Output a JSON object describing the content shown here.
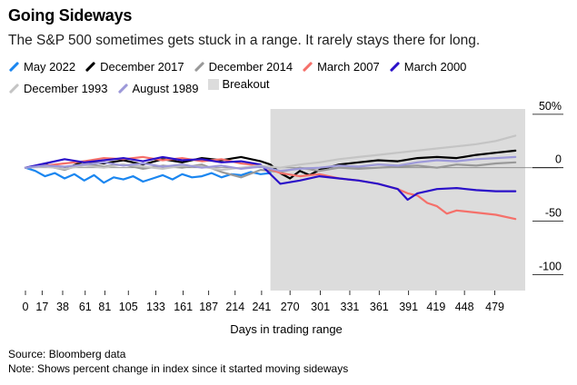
{
  "title": "Going Sideways",
  "subtitle": "The S&P 500 sometimes gets stuck in a range. It rarely stays there for long.",
  "source": "Source: Bloomberg data",
  "note": "Note: Shows percent change in index since it started moving sideways",
  "chart_data": {
    "type": "line",
    "title": "Going Sideways",
    "xlabel": "Days in trading range",
    "ylabel": "",
    "xlim": [
      0,
      510
    ],
    "ylim": [
      -115,
      55
    ],
    "x_ticks": [
      0,
      17,
      38,
      61,
      81,
      105,
      133,
      161,
      187,
      214,
      241,
      270,
      301,
      331,
      361,
      391,
      419,
      448,
      479
    ],
    "y_ticks": [
      {
        "value": 50,
        "label": "50%"
      },
      {
        "value": 0,
        "label": "0"
      },
      {
        "value": -50,
        "label": "-50"
      },
      {
        "value": -100,
        "label": "-100"
      }
    ],
    "breakout": {
      "label": "Breakout",
      "color": "#dcdcdc",
      "x_start": 250,
      "x_end": 510
    },
    "legend_position": "top",
    "grid": false,
    "series": [
      {
        "name": "May 2022",
        "color": "#1a86f0",
        "x": [
          0,
          10,
          20,
          30,
          40,
          50,
          60,
          70,
          80,
          90,
          100,
          110,
          120,
          130,
          140,
          150,
          160,
          170,
          180,
          190,
          200,
          210,
          220,
          230,
          240,
          250
        ],
        "values": [
          0,
          -3,
          -8,
          -5,
          -10,
          -6,
          -12,
          -7,
          -14,
          -9,
          -11,
          -8,
          -13,
          -10,
          -7,
          -11,
          -6,
          -9,
          -8,
          -5,
          -9,
          -6,
          -7,
          -4,
          -6,
          -5
        ]
      },
      {
        "name": "December 2017",
        "color": "#000000",
        "x": [
          0,
          20,
          40,
          60,
          80,
          100,
          120,
          140,
          160,
          180,
          200,
          220,
          240,
          250,
          260,
          270,
          280,
          290,
          300,
          320,
          340,
          360,
          380,
          400,
          420,
          440,
          460,
          480,
          500
        ],
        "values": [
          0,
          3,
          -1,
          6,
          4,
          7,
          3,
          8,
          5,
          9,
          7,
          10,
          6,
          3,
          -5,
          -10,
          -3,
          -7,
          -2,
          3,
          5,
          7,
          6,
          9,
          10,
          9,
          12,
          14,
          16
        ]
      },
      {
        "name": "December 2014",
        "color": "#999999",
        "x": [
          0,
          20,
          40,
          60,
          80,
          100,
          120,
          140,
          160,
          180,
          200,
          220,
          240,
          260,
          280,
          300,
          320,
          340,
          360,
          380,
          400,
          420,
          440,
          460,
          480,
          500
        ],
        "values": [
          0,
          2,
          -2,
          4,
          1,
          3,
          -1,
          2,
          0,
          3,
          -4,
          -9,
          -2,
          -4,
          0,
          -3,
          0,
          -1,
          0,
          1,
          2,
          0,
          3,
          2,
          4,
          5
        ]
      },
      {
        "name": "March 2007",
        "color": "#f5706a",
        "x": [
          0,
          20,
          40,
          60,
          80,
          100,
          120,
          140,
          160,
          180,
          200,
          220,
          240,
          260,
          280,
          300,
          320,
          340,
          360,
          380,
          390,
          400,
          410,
          420,
          430,
          440,
          460,
          480,
          500
        ],
        "values": [
          0,
          2,
          4,
          6,
          9,
          8,
          10,
          7,
          9,
          6,
          8,
          4,
          2,
          -5,
          -8,
          -6,
          -10,
          -12,
          -15,
          -20,
          -24,
          -26,
          -33,
          -36,
          -43,
          -40,
          -42,
          -44,
          -48
        ]
      },
      {
        "name": "March 2000",
        "color": "#2a10c9",
        "x": [
          0,
          20,
          40,
          60,
          80,
          100,
          120,
          140,
          160,
          180,
          200,
          220,
          240,
          260,
          280,
          300,
          320,
          340,
          360,
          380,
          390,
          400,
          410,
          420,
          440,
          460,
          480,
          500
        ],
        "values": [
          0,
          4,
          8,
          5,
          7,
          9,
          6,
          10,
          7,
          8,
          5,
          6,
          3,
          -15,
          -12,
          -8,
          -10,
          -12,
          -15,
          -20,
          -30,
          -24,
          -22,
          -20,
          -19,
          -21,
          -22,
          -22
        ]
      },
      {
        "name": "December 1993",
        "color": "#c4c4c4",
        "x": [
          0,
          20,
          40,
          60,
          80,
          100,
          120,
          140,
          160,
          180,
          200,
          220,
          240,
          260,
          280,
          300,
          320,
          340,
          360,
          380,
          400,
          420,
          440,
          460,
          480,
          500
        ],
        "values": [
          0,
          1,
          -1,
          2,
          0,
          3,
          1,
          -1,
          2,
          1,
          -2,
          0,
          2,
          0,
          3,
          5,
          8,
          10,
          12,
          14,
          16,
          18,
          20,
          22,
          25,
          30
        ]
      },
      {
        "name": "August 1989",
        "color": "#9d99d9",
        "x": [
          0,
          20,
          40,
          60,
          80,
          100,
          120,
          140,
          160,
          180,
          200,
          220,
          240,
          260,
          280,
          300,
          320,
          340,
          360,
          380,
          400,
          420,
          440,
          460,
          480,
          500
        ],
        "values": [
          0,
          2,
          1,
          3,
          5,
          2,
          4,
          1,
          3,
          0,
          2,
          -1,
          1,
          -3,
          -1,
          0,
          2,
          1,
          3,
          2,
          5,
          7,
          6,
          8,
          9,
          10
        ]
      }
    ]
  }
}
